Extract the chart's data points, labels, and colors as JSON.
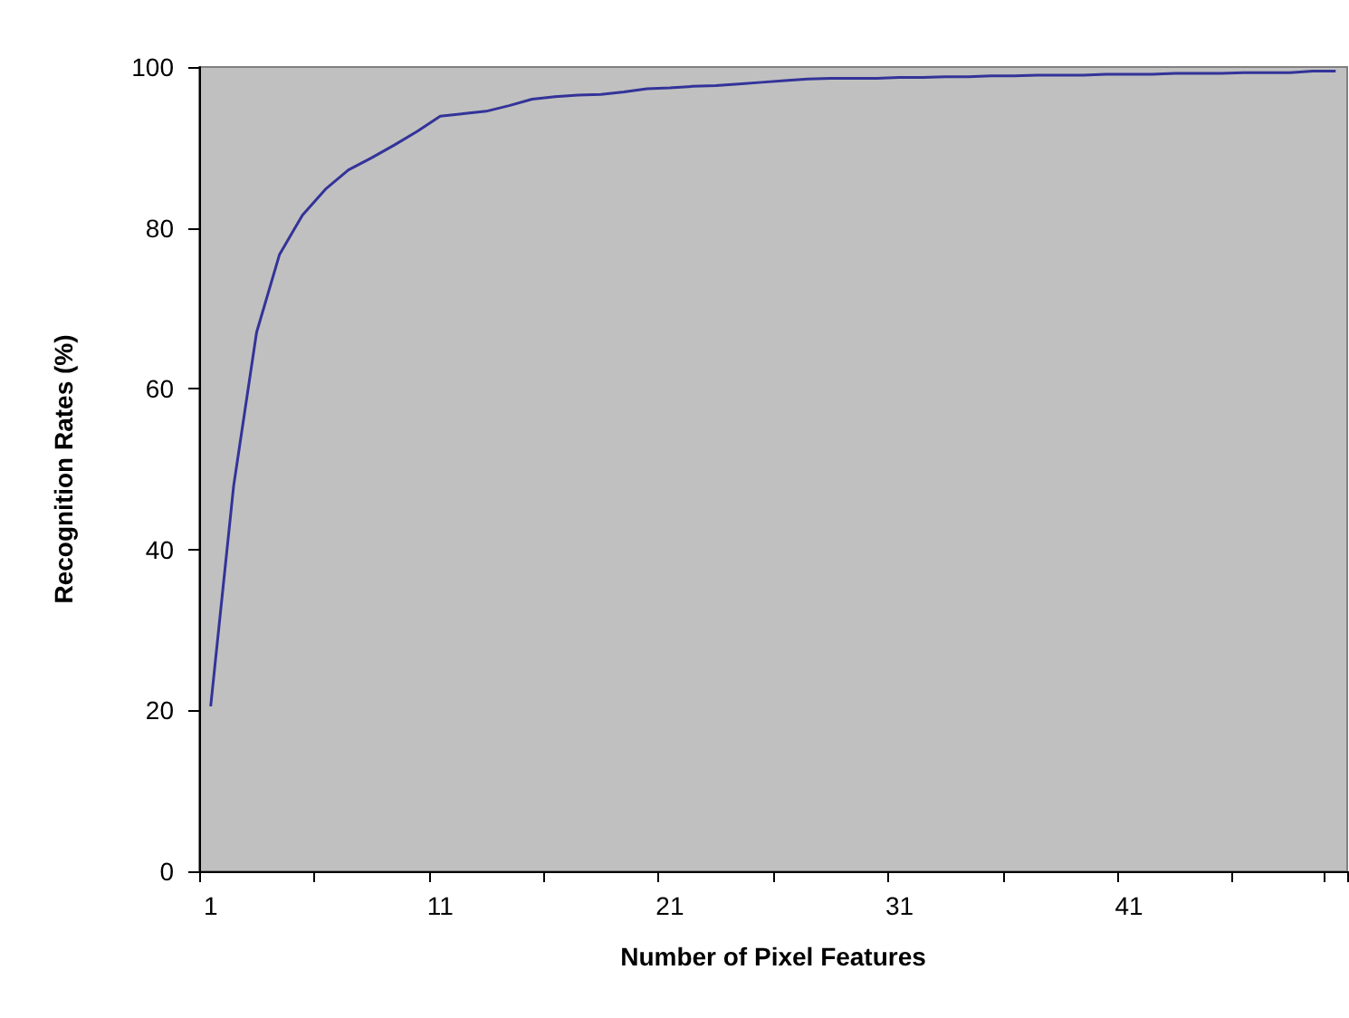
{
  "chart_data": {
    "type": "line",
    "xlabel": "Number of Pixel Features",
    "ylabel": "Recognition Rates (%)",
    "categories": [
      "1",
      null,
      null,
      null,
      null,
      null,
      null,
      null,
      null,
      null,
      "11",
      null,
      null,
      null,
      null,
      null,
      null,
      null,
      null,
      null,
      "21",
      null,
      null,
      null,
      null,
      null,
      null,
      null,
      null,
      null,
      "31",
      null,
      null,
      null,
      null,
      null,
      null,
      null,
      null,
      null,
      "41",
      null,
      null,
      null,
      null,
      null,
      null,
      null,
      null,
      null
    ],
    "series": [
      {
        "color": "#333399",
        "values": [
          20.5,
          47.9,
          67,
          76.7,
          81.6,
          84.8,
          87.2,
          88.7,
          90.3,
          92,
          93.9,
          94.2,
          94.5,
          95.2,
          96,
          96.3,
          96.5,
          96.6,
          96.9,
          97.3,
          97.4,
          97.6,
          97.7,
          97.9,
          98.1,
          98.3,
          98.5,
          98.6,
          98.6,
          98.6,
          98.7,
          98.7,
          98.8,
          98.8,
          98.9,
          98.9,
          99,
          99,
          99,
          99.1,
          99.1,
          99.1,
          99.2,
          99.2,
          99.2,
          99.3,
          99.3,
          99.3,
          99.5,
          99.5
        ]
      }
    ],
    "ylim": [
      0,
      100
    ],
    "yticks": [
      0,
      20,
      40,
      60,
      80,
      100
    ],
    "grid": false,
    "marker": "none",
    "line_style": "solid"
  }
}
